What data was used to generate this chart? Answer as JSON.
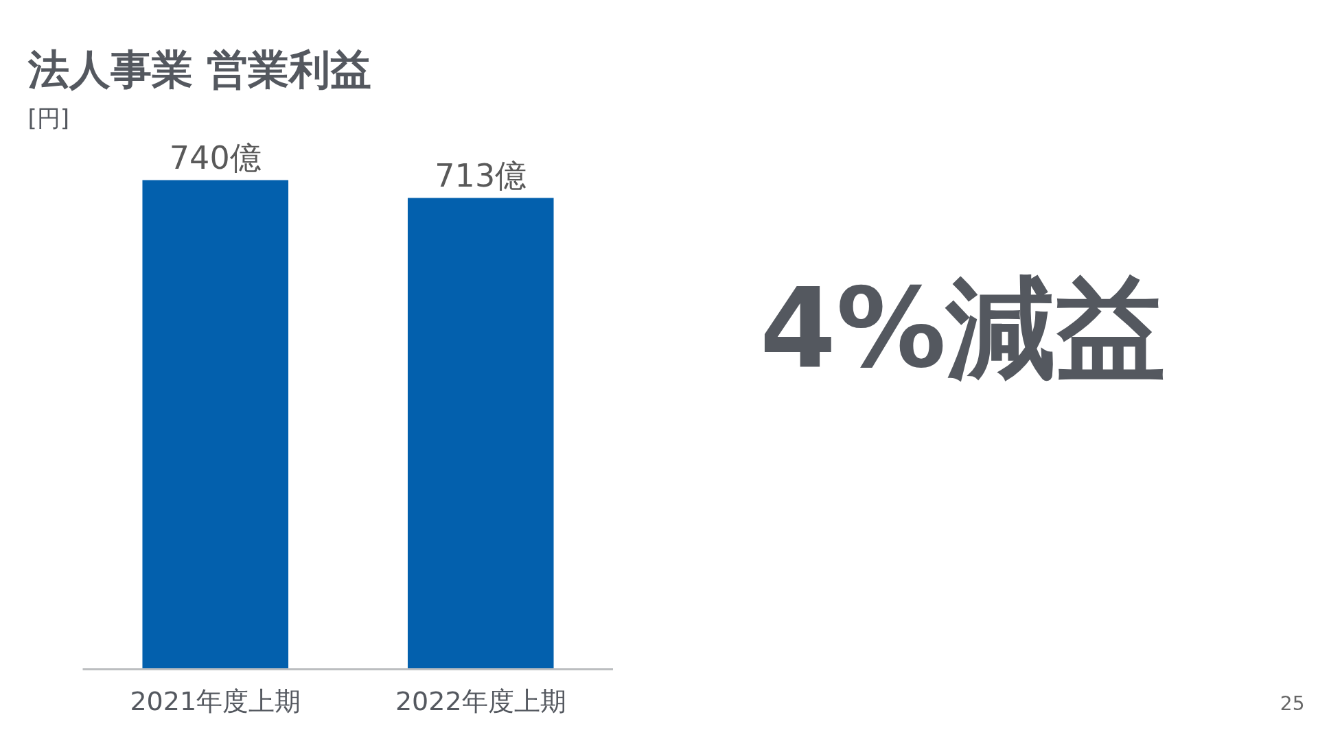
{
  "chart_data": {
    "type": "bar",
    "title": "法人事業 営業利益",
    "ylabel": "[円]",
    "categories": [
      "2021年度上期",
      "2022年度上期"
    ],
    "values": [
      740,
      713
    ],
    "value_labels": [
      "740億",
      "713億"
    ],
    "color": "#0360ad",
    "annotations": [
      "4%減益",
      "25"
    ],
    "grid": false,
    "tick_labels": "x"
  }
}
